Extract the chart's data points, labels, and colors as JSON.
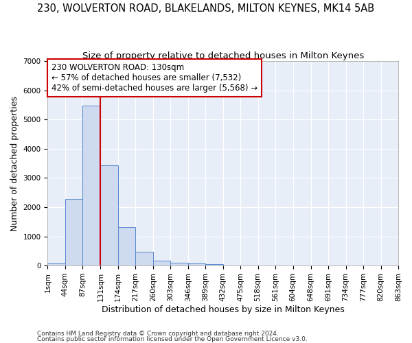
{
  "title": "230, WOLVERTON ROAD, BLAKELANDS, MILTON KEYNES, MK14 5AB",
  "subtitle": "Size of property relative to detached houses in Milton Keynes",
  "xlabel": "Distribution of detached houses by size in Milton Keynes",
  "ylabel": "Number of detached properties",
  "footnote1": "Contains HM Land Registry data © Crown copyright and database right 2024.",
  "footnote2": "Contains public sector information licensed under the Open Government Licence v3.0.",
  "bar_edges": [
    1,
    44,
    87,
    131,
    174,
    217,
    260,
    303,
    346,
    389,
    432,
    475,
    518,
    561,
    604,
    648,
    691,
    734,
    777,
    820,
    863
  ],
  "bar_heights": [
    75,
    2280,
    5480,
    3440,
    1310,
    470,
    160,
    105,
    75,
    50,
    0,
    0,
    0,
    0,
    0,
    0,
    0,
    0,
    0,
    0
  ],
  "bar_color": "#cddaf0",
  "bar_edge_color": "#5588cc",
  "vline_x": 131,
  "vline_color": "#cc0000",
  "annotation_text": "230 WOLVERTON ROAD: 130sqm\n← 57% of detached houses are smaller (7,532)\n42% of semi-detached houses are larger (5,568) →",
  "annotation_box_color": "#cc0000",
  "ylim": [
    0,
    7000
  ],
  "yticks": [
    0,
    1000,
    2000,
    3000,
    4000,
    5000,
    6000,
    7000
  ],
  "tick_labels": [
    "1sqm",
    "44sqm",
    "87sqm",
    "131sqm",
    "174sqm",
    "217sqm",
    "260sqm",
    "303sqm",
    "346sqm",
    "389sqm",
    "432sqm",
    "475sqm",
    "518sqm",
    "561sqm",
    "604sqm",
    "648sqm",
    "691sqm",
    "734sqm",
    "777sqm",
    "820sqm",
    "863sqm"
  ],
  "bg_color": "#e8eef8",
  "grid_color": "#ffffff",
  "title_fontsize": 10.5,
  "subtitle_fontsize": 9.5,
  "axis_label_fontsize": 9,
  "tick_fontsize": 7.5,
  "annotation_fontsize": 8.5,
  "footnote_fontsize": 6.5
}
